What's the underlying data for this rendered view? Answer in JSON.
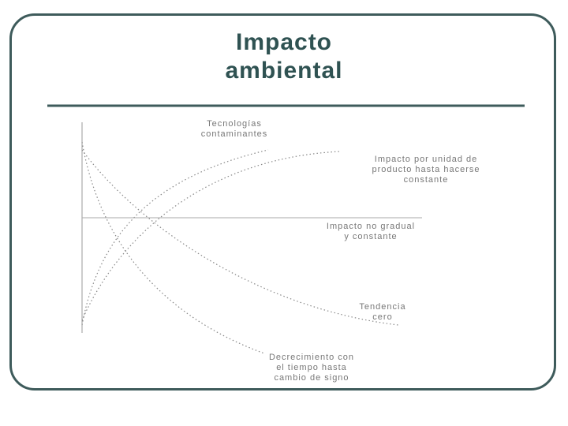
{
  "header": {
    "title": "Impacto ambiental"
  },
  "diagram": {
    "labels": [
      {
        "lines": [
          "Tecnologías",
          "contaminantes"
        ]
      },
      {
        "lines": [
          "Impacto por unidad de",
          "producto hasta hacerse",
          "constante"
        ]
      },
      {
        "lines": [
          "Impacto no gradual",
          "y constante"
        ]
      },
      {
        "lines": [
          "Tendencia",
          "cero"
        ]
      },
      {
        "lines": [
          "Decrecimiento con",
          "el tiempo hasta",
          "cambio de signo"
        ]
      }
    ]
  }
}
